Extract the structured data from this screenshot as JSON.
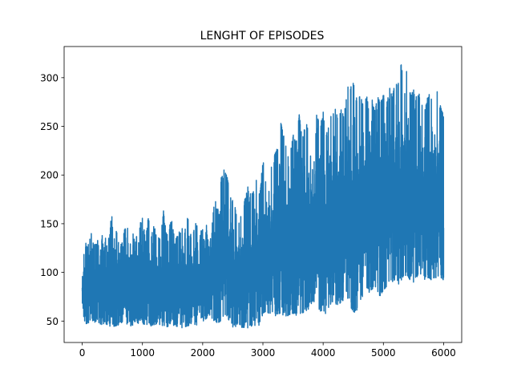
{
  "chart_data": {
    "type": "line",
    "title": "LENGHT OF EPISODES",
    "xlabel": "",
    "ylabel": "",
    "xlim": [
      -300,
      6300
    ],
    "ylim": [
      28,
      332
    ],
    "xticks": [
      0,
      1000,
      2000,
      3000,
      4000,
      5000,
      6000
    ],
    "yticks": [
      50,
      100,
      150,
      200,
      250,
      300
    ],
    "grid": false,
    "color": "#1f77b4",
    "series": [
      {
        "x": [
          0,
          50,
          100,
          150,
          200,
          250,
          300,
          350,
          400,
          450,
          500,
          550,
          600,
          650,
          700,
          750,
          800,
          850,
          900,
          950,
          1000,
          1050,
          1100,
          1150,
          1200,
          1250,
          1300,
          1350,
          1400,
          1450,
          1500,
          1550,
          1600,
          1650,
          1700,
          1750,
          1800,
          1850,
          1900,
          1950,
          2000,
          2050,
          2100,
          2150,
          2200,
          2250,
          2300,
          2350,
          2400,
          2450,
          2500,
          2550,
          2600,
          2650,
          2700,
          2750,
          2800,
          2850,
          2900,
          2950,
          3000,
          3050,
          3100,
          3150,
          3200,
          3250,
          3300,
          3350,
          3400,
          3450,
          3500,
          3550,
          3600,
          3650,
          3700,
          3750,
          3800,
          3850,
          3900,
          3950,
          4000,
          4050,
          4100,
          4150,
          4200,
          4250,
          4300,
          4350,
          4400,
          4450,
          4500,
          4550,
          4600,
          4650,
          4700,
          4750,
          4800,
          4850,
          4900,
          4950,
          5000,
          5050,
          5100,
          5150,
          5200,
          5250,
          5300,
          5350,
          5400,
          5450,
          5500,
          5550,
          5600,
          5650,
          5700,
          5750,
          5800,
          5850,
          5900,
          5950,
          6000
        ],
        "min": [
          60,
          47,
          48,
          50,
          49,
          48,
          47,
          46,
          47,
          45,
          44,
          45,
          46,
          47,
          47,
          46,
          45,
          46,
          47,
          48,
          46,
          47,
          46,
          45,
          46,
          47,
          46,
          45,
          44,
          45,
          46,
          45,
          44,
          43,
          44,
          45,
          46,
          47,
          46,
          47,
          49,
          52,
          55,
          52,
          50,
          48,
          50,
          52,
          55,
          48,
          44,
          42,
          43,
          42,
          44,
          43,
          45,
          44,
          45,
          46,
          58,
          60,
          58,
          56,
          55,
          58,
          57,
          56,
          55,
          57,
          58,
          56,
          55,
          58,
          60,
          62,
          65,
          68,
          64,
          60,
          50,
          60,
          65,
          70,
          68,
          66,
          70,
          72,
          75,
          65,
          60,
          58,
          70,
          75,
          80,
          78,
          82,
          85,
          80,
          75,
          82,
          85,
          88,
          90,
          92,
          88,
          90,
          92,
          95,
          92,
          90,
          95,
          98,
          95,
          92,
          95,
          92,
          95,
          92,
          95,
          92
        ],
        "max": [
          100,
          135,
          130,
          142,
          128,
          138,
          124,
          150,
          130,
          140,
          166,
          138,
          152,
          132,
          145,
          150,
          130,
          160,
          138,
          148,
          158,
          133,
          160,
          140,
          150,
          132,
          142,
          164,
          138,
          150,
          155,
          136,
          140,
          150,
          142,
          158,
          140,
          146,
          152,
          138,
          148,
          155,
          130,
          145,
          178,
          165,
          195,
          210,
          200,
          185,
          175,
          165,
          155,
          160,
          175,
          190,
          180,
          185,
          200,
          180,
          218,
          195,
          215,
          210,
          222,
          230,
          256,
          240,
          225,
          218,
          245,
          235,
          265,
          240,
          250,
          255,
          240,
          260,
          262,
          250,
          265,
          240,
          255,
          265,
          270,
          255,
          268,
          260,
          295,
          290,
          296,
          280,
          285,
          275,
          285,
          276,
          280,
          270,
          282,
          275,
          285,
          270,
          295,
          280,
          300,
          296,
          317,
          285,
          317,
          282,
          290,
          280,
          285,
          272,
          270,
          285,
          282,
          278,
          290,
          270,
          262
        ]
      }
    ]
  }
}
